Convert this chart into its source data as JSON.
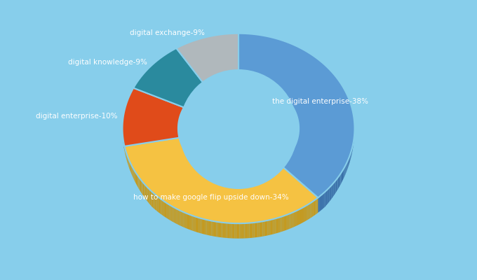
{
  "labels": [
    "the digital enterprise",
    "how to make google flip upside down",
    "digital enterprise",
    "digital knowledge",
    "digital exchange"
  ],
  "values": [
    38,
    34,
    10,
    9,
    9
  ],
  "percentages": [
    "38%",
    "34%",
    "10%",
    "9%",
    "9%"
  ],
  "colors": [
    "#5b9bd5",
    "#f5c242",
    "#e04b1a",
    "#2a8a9e",
    "#b0b8bc"
  ],
  "shadow_colors": [
    "#3a6fa8",
    "#c49a20",
    "#b03010",
    "#1a6070",
    "#888f94"
  ],
  "background_color": "#87ceeb",
  "label_color": "#ffffff",
  "startangle": 90,
  "figsize": [
    6.8,
    4.0
  ],
  "dpi": 100
}
